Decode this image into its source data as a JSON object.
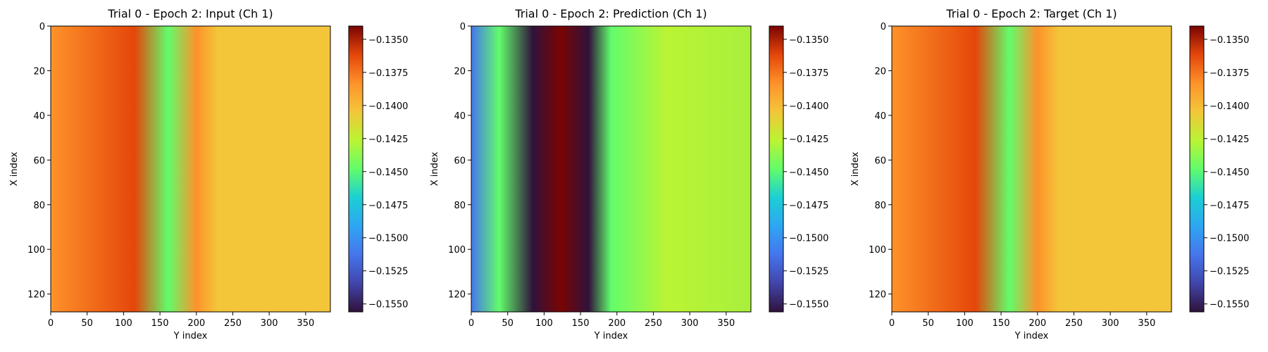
{
  "chart_data": [
    {
      "type": "heatmap",
      "title": "Trial 0 - Epoch 2: Input (Ch 1)",
      "xlabel": "Y index",
      "ylabel": "X index",
      "xlim": [
        0,
        384
      ],
      "ylim": [
        128,
        0
      ],
      "xticks": [
        0,
        50,
        100,
        150,
        200,
        250,
        300,
        350
      ],
      "yticks": [
        0,
        20,
        40,
        60,
        80,
        100,
        120
      ],
      "colormap": "turbo",
      "colorbar": {
        "vmin": -0.1556,
        "vmax": -0.134,
        "ticks": [
          -0.135,
          -0.1375,
          -0.14,
          -0.1425,
          -0.145,
          -0.1475,
          -0.15,
          -0.1525,
          -0.155
        ]
      }
    },
    {
      "type": "heatmap",
      "title": "Trial 0 - Epoch 2: Prediction (Ch 1)",
      "xlabel": "Y index",
      "ylabel": "X index",
      "xlim": [
        0,
        384
      ],
      "ylim": [
        128,
        0
      ],
      "xticks": [
        0,
        50,
        100,
        150,
        200,
        250,
        300,
        350
      ],
      "yticks": [
        0,
        20,
        40,
        60,
        80,
        100,
        120
      ],
      "colormap": "turbo",
      "colorbar": {
        "vmin": -0.1556,
        "vmax": -0.134,
        "ticks": [
          -0.135,
          -0.1375,
          -0.14,
          -0.1425,
          -0.145,
          -0.1475,
          -0.15,
          -0.1525,
          -0.155
        ]
      }
    },
    {
      "type": "heatmap",
      "title": "Trial 0 - Epoch 2: Target (Ch 1)",
      "xlabel": "Y index",
      "ylabel": "X index",
      "xlim": [
        0,
        384
      ],
      "ylim": [
        128,
        0
      ],
      "xticks": [
        0,
        50,
        100,
        150,
        200,
        250,
        300,
        350
      ],
      "yticks": [
        0,
        20,
        40,
        60,
        80,
        100,
        120
      ],
      "colormap": "turbo",
      "colorbar": {
        "vmin": -0.1556,
        "vmax": -0.134,
        "ticks": [
          -0.135,
          -0.1375,
          -0.14,
          -0.1425,
          -0.145,
          -0.1475,
          -0.15,
          -0.1525,
          -0.155
        ]
      }
    }
  ]
}
